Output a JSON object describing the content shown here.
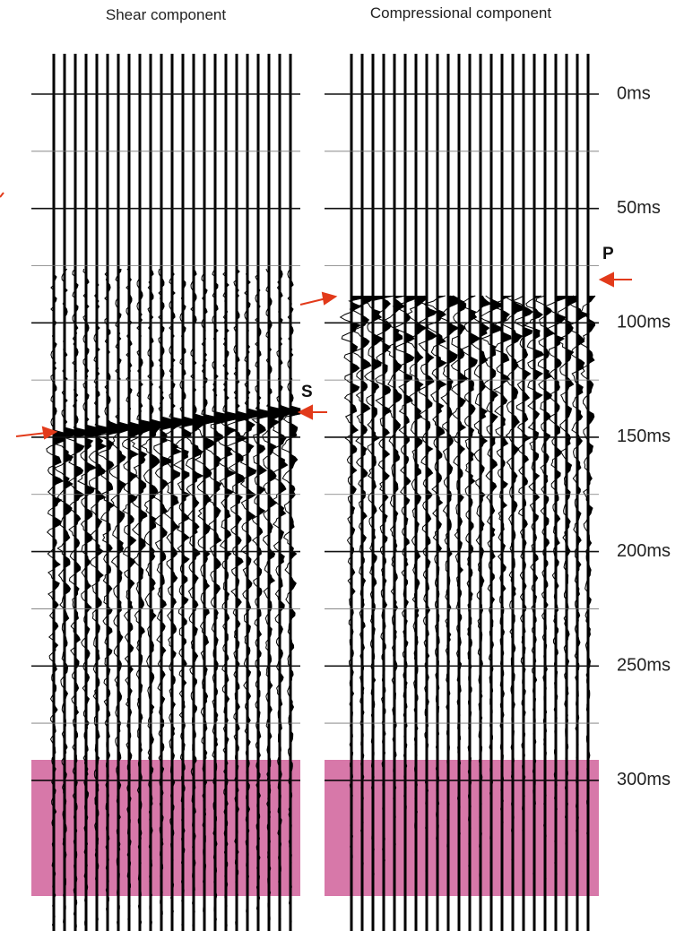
{
  "panels": [
    {
      "title": "Shear component",
      "pick_label": "S"
    },
    {
      "title": "Compressional component",
      "pick_label": "P"
    }
  ],
  "time_axis": {
    "ticks": [
      {
        "value": 0,
        "label": "0ms"
      },
      {
        "value": 50,
        "label": "50ms"
      },
      {
        "value": 100,
        "label": "100ms"
      },
      {
        "value": 150,
        "label": "150ms"
      },
      {
        "value": 200,
        "label": "200ms"
      },
      {
        "value": 250,
        "label": "250ms"
      },
      {
        "value": 300,
        "label": "300ms"
      }
    ]
  }
}
